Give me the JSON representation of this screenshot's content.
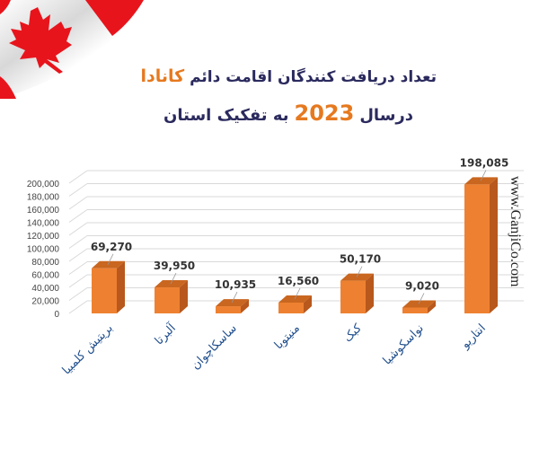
{
  "header": {
    "title_prefix": "تعداد دریافت کنندگان اقامت دائم",
    "title_highlight": "کانادا",
    "subtitle_prefix": "درسال",
    "subtitle_year": "2023",
    "subtitle_suffix": "به تفکیک استان"
  },
  "watermark": "www.GanjiCo.com",
  "colors": {
    "bar_front": "#ee8131",
    "bar_side": "#b8581c",
    "bar_top": "#c9661f",
    "title": "#2b2a5e",
    "accent": "#e6791f",
    "axis_label": "#1f4e8c",
    "grid": "#d9d9d9"
  },
  "chart_data": {
    "type": "bar",
    "title": "تعداد دریافت کنندگان اقامت دائم کانادا درسال 2023 به تفکیک استان",
    "xlabel": "",
    "ylabel": "",
    "ylim": [
      0,
      200000
    ],
    "yticks": [
      "0",
      "20,000",
      "40,000",
      "60,000",
      "80,000",
      "100,000",
      "120,000",
      "140,000",
      "160,000",
      "180,000",
      "200,000"
    ],
    "categories": [
      "بریتیش کلمبیا",
      "آلبرتا",
      "ساسکاچوان",
      "منیتوبا",
      "کبک",
      "نواسکوشیا",
      "انتاریو"
    ],
    "values": [
      69270,
      39950,
      10935,
      16560,
      50170,
      9020,
      198085
    ],
    "value_labels": [
      "69,270",
      "39,950",
      "10,935",
      "16,560",
      "50,170",
      "9,020",
      "198,085"
    ],
    "grid": true,
    "legend": "none",
    "style": "3d-column"
  }
}
